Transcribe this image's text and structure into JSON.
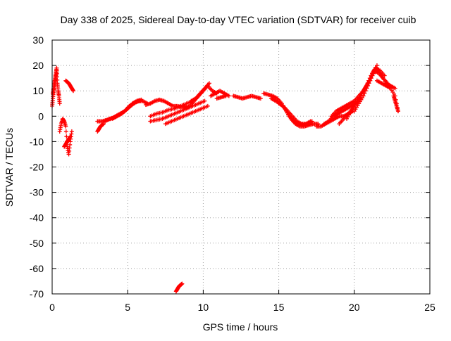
{
  "chart_data": {
    "type": "scatter",
    "title": "Day 338 of 2025, Sidereal Day-to-day VTEC variation (SDTVAR) for receiver cuib",
    "xlabel": "GPS time / hours",
    "ylabel": "SDTVAR / TECUs",
    "xlim": [
      0,
      25
    ],
    "ylim": [
      -70,
      30
    ],
    "xticks": [
      0,
      5,
      10,
      15,
      20,
      25
    ],
    "yticks": [
      -70,
      -60,
      -50,
      -40,
      -30,
      -20,
      -10,
      0,
      10,
      20,
      30
    ],
    "grid": true,
    "marker": "+",
    "series": [
      {
        "name": "SDTVAR",
        "color": "#ff0000",
        "segments": [
          {
            "x": [
              0.0,
              0.05,
              0.1,
              0.15,
              0.2,
              0.25,
              0.3,
              0.35,
              0.4,
              0.45,
              0.5
            ],
            "y": [
              4,
              7,
              10,
              12,
              14,
              16,
              18,
              13,
              10,
              8,
              5
            ]
          },
          {
            "x": [
              0.05,
              0.1,
              0.15,
              0.2,
              0.25,
              0.3
            ],
            "y": [
              9,
              11,
              13,
              15,
              17,
              19
            ]
          },
          {
            "x": [
              0.5,
              0.6,
              0.7,
              0.8,
              0.9,
              1.0,
              1.1,
              1.2,
              1.3
            ],
            "y": [
              -6,
              -3,
              -1,
              -2,
              -4,
              -12,
              -15,
              -10,
              -6
            ]
          },
          {
            "x": [
              0.8,
              0.9,
              1.0,
              1.1,
              1.2
            ],
            "y": [
              -12,
              -11,
              -10,
              -9,
              -8
            ]
          },
          {
            "x": [
              0.9,
              1.0,
              1.1,
              1.2,
              1.3,
              1.4
            ],
            "y": [
              14,
              13.5,
              13,
              12,
              11,
              10
            ]
          },
          {
            "x": [
              3.0,
              3.1,
              3.2,
              3.3,
              3.4
            ],
            "y": [
              -6,
              -5,
              -4,
              -3.5,
              -3
            ]
          },
          {
            "x": [
              3.0,
              3.3,
              3.6,
              3.9,
              4.2,
              4.5,
              4.8,
              5.1,
              5.4,
              5.7,
              6.0,
              6.3
            ],
            "y": [
              -2,
              -2,
              -1.5,
              -1,
              0,
              1,
              2,
              4,
              5,
              6,
              6,
              5
            ]
          },
          {
            "x": [
              3.5,
              3.8,
              4.1,
              4.4,
              4.7,
              5.0,
              5.3,
              5.6,
              5.9
            ],
            "y": [
              -2,
              -1,
              -0.5,
              0.5,
              1.5,
              3,
              5,
              6,
              6.5
            ]
          },
          {
            "x": [
              4.0,
              4.3,
              4.6,
              4.9,
              5.2,
              5.5,
              5.8
            ],
            "y": [
              -1,
              0,
              1,
              2.5,
              4,
              5.5,
              6
            ]
          },
          {
            "x": [
              6.2,
              6.5,
              6.8,
              7.1,
              7.4,
              7.7,
              8.0,
              8.3,
              8.6,
              8.9
            ],
            "y": [
              4.5,
              5,
              6,
              6.5,
              6,
              5,
              4,
              4,
              3.5,
              4
            ]
          },
          {
            "x": [
              6.5,
              6.9,
              7.3,
              7.7,
              8.1,
              8.5,
              8.9,
              9.3,
              9.7,
              10.1
            ],
            "y": [
              -2,
              -1.5,
              -1,
              0,
              1,
              2,
              3,
              4,
              5,
              6
            ]
          },
          {
            "x": [
              6.5,
              6.9,
              7.3,
              7.7,
              8.1,
              8.5,
              8.9,
              9.3
            ],
            "y": [
              0,
              1,
              1.5,
              2.5,
              3,
              4,
              5,
              6
            ]
          },
          {
            "x": [
              7.5,
              7.9,
              8.3,
              8.7,
              9.1,
              9.5,
              9.9,
              10.3
            ],
            "y": [
              -3,
              -2,
              -1,
              0,
              1,
              2,
              3,
              4
            ]
          },
          {
            "x": [
              8.8,
              9.1,
              9.4,
              9.7,
              10.0,
              10.3,
              10.6,
              10.9
            ],
            "y": [
              3,
              4,
              6,
              8,
              10,
              12,
              10,
              9
            ]
          },
          {
            "x": [
              9.2,
              9.5,
              9.8,
              10.1,
              10.4
            ],
            "y": [
              6,
              7,
              9,
              11,
              13
            ]
          },
          {
            "x": [
              10.5,
              10.8,
              11.1,
              11.4,
              11.7
            ],
            "y": [
              8,
              9,
              10,
              9,
              8
            ]
          },
          {
            "x": [
              10.9,
              11.2,
              11.5
            ],
            "y": [
              7,
              7.5,
              8
            ]
          },
          {
            "x": [
              12.0,
              12.3,
              12.6,
              12.9,
              13.2,
              13.5,
              13.8
            ],
            "y": [
              8,
              7.5,
              7,
              7.5,
              8,
              7.5,
              7
            ]
          },
          {
            "x": [
              14.0,
              14.3,
              14.6,
              14.9,
              15.2,
              15.5,
              15.8,
              16.1,
              16.4,
              16.7,
              17.0,
              17.3,
              17.6
            ],
            "y": [
              9,
              8.5,
              8,
              7,
              5,
              2,
              -1,
              -3,
              -4,
              -4,
              -3.5,
              -3,
              -3
            ]
          },
          {
            "x": [
              14.5,
              14.8,
              15.1,
              15.4,
              15.7,
              16.0,
              16.3,
              16.6,
              16.9,
              17.2
            ],
            "y": [
              7,
              6,
              5,
              3,
              0,
              -2,
              -3,
              -3.5,
              -3,
              -2
            ]
          },
          {
            "x": [
              15.0,
              15.3,
              15.6,
              15.9,
              16.2,
              16.5,
              16.8,
              17.1
            ],
            "y": [
              5,
              4,
              2,
              0,
              -2,
              -3,
              -3,
              -2
            ]
          },
          {
            "x": [
              17.5,
              17.8,
              18.1,
              18.4,
              18.7,
              19.0,
              19.3,
              19.6,
              19.9
            ],
            "y": [
              -4,
              -4,
              -3,
              -2,
              -1,
              0,
              0,
              1,
              2
            ]
          },
          {
            "x": [
              18.0,
              18.3,
              18.6,
              18.9,
              19.2,
              19.5,
              19.8,
              20.1,
              20.4
            ],
            "y": [
              -3,
              -2,
              0,
              1,
              2,
              3,
              4,
              5,
              7
            ]
          },
          {
            "x": [
              18.5,
              18.8,
              19.1,
              19.4,
              19.7,
              20.0,
              20.3,
              20.6,
              20.9,
              21.2,
              21.5
            ],
            "y": [
              0,
              2,
              3,
              4,
              5,
              6,
              8,
              10,
              13,
              17,
              20
            ]
          },
          {
            "x": [
              19.0,
              19.3,
              19.6,
              19.9,
              20.2,
              20.5,
              20.8,
              21.1,
              21.4,
              21.7,
              22.0
            ],
            "y": [
              -3,
              -1,
              1,
              3,
              6,
              9,
              12,
              16,
              19,
              18,
              16
            ]
          },
          {
            "x": [
              19.5,
              19.8,
              20.1,
              20.4,
              20.7,
              21.0,
              21.3,
              21.6,
              21.9,
              22.2
            ],
            "y": [
              -1,
              2,
              5,
              8,
              11,
              14,
              18,
              17,
              15,
              13
            ]
          },
          {
            "x": [
              20.0,
              20.3,
              20.6,
              20.9,
              21.2,
              21.5,
              21.8,
              22.1,
              22.4,
              22.7
            ],
            "y": [
              2,
              5,
              8,
              12,
              16,
              19,
              16,
              13,
              12,
              11
            ]
          },
          {
            "x": [
              21.5,
              21.8,
              22.1,
              22.4,
              22.7,
              22.9
            ],
            "y": [
              14,
              13,
              12,
              11,
              8,
              2
            ]
          },
          {
            "x": [
              22.6,
              22.7,
              22.8,
              22.9
            ],
            "y": [
              8,
              6,
              4,
              2
            ]
          },
          {
            "x": [
              8.2,
              8.3,
              8.4,
              8.5,
              8.6
            ],
            "y": [
              -69,
              -68,
              -67,
              -66.5,
              -66
            ]
          }
        ]
      }
    ]
  }
}
